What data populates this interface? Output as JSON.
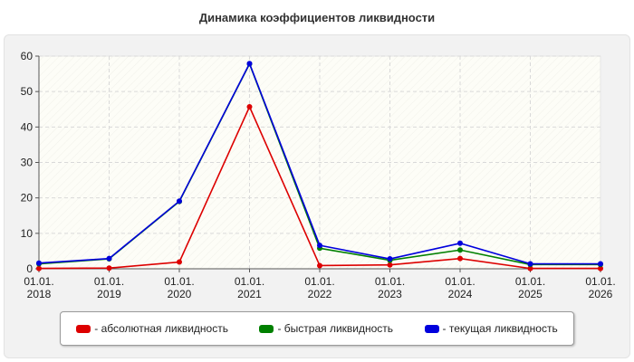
{
  "chart_data": {
    "type": "line",
    "title": "Динамика коэффициентов ликвидности",
    "categories": [
      "01.01.\n2018",
      "01.01.\n2019",
      "01.01.\n2020",
      "01.01.\n2021",
      "01.01.\n2022",
      "01.01.\n2023",
      "01.01.\n2024",
      "01.01.\n2025",
      "01.01.\n2026"
    ],
    "yticks": [
      0,
      10,
      20,
      30,
      40,
      50,
      60
    ],
    "ylim": [
      0,
      60
    ],
    "grid": true,
    "legend_position": "bottom",
    "series": [
      {
        "name": "- абсолютная ликвидность",
        "color": "#dd0000",
        "values": [
          0.1,
          0.2,
          1.9,
          45.7,
          0.9,
          1.1,
          2.9,
          0.1,
          0.1
        ]
      },
      {
        "name": "- быстрая ликвидность",
        "color": "#008000",
        "values": [
          1.4,
          2.8,
          19.0,
          57.8,
          5.8,
          2.4,
          5.3,
          1.2,
          1.2
        ]
      },
      {
        "name": "- текущая ликвидность",
        "color": "#0000dd",
        "values": [
          1.6,
          2.9,
          19.1,
          57.9,
          6.6,
          2.8,
          7.2,
          1.4,
          1.4
        ]
      }
    ]
  }
}
